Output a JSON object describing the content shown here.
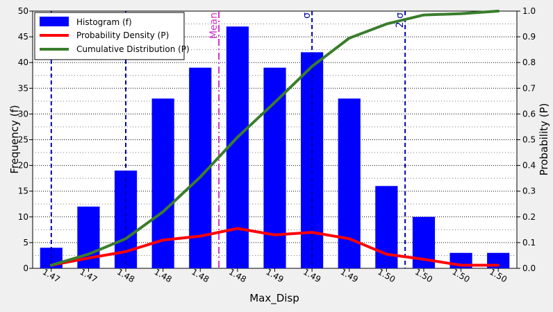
{
  "chart_data": {
    "type": "bar",
    "xlabel": "Max_Disp",
    "ylabel_left": "Frequency (f)",
    "ylabel_right": "Probability (P)",
    "categories": [
      "1.47",
      "1.47",
      "1.48",
      "1.48",
      "1.48",
      "1.48",
      "1.49",
      "1.49",
      "1.49",
      "1.50",
      "1.50",
      "1.50",
      "1.50"
    ],
    "ylim_left": [
      0,
      50
    ],
    "ylim_right": [
      0,
      1.0
    ],
    "yticks_left": [
      "0",
      "5",
      "10",
      "15",
      "20",
      "25",
      "30",
      "35",
      "40",
      "45",
      "50"
    ],
    "yticks_right": [
      "0.0",
      "0.1",
      "0.2",
      "0.3",
      "0.4",
      "0.5",
      "0.6",
      "0.7",
      "0.8",
      "0.9",
      "1.0"
    ],
    "grid": true,
    "legend_position": "top-left",
    "series": [
      {
        "name": "Histogram (f)",
        "type": "bar",
        "axis": "left",
        "color": "#0000ff",
        "values": [
          4,
          12,
          19,
          33,
          39,
          47,
          39,
          42,
          33,
          16,
          10,
          3,
          3
        ]
      },
      {
        "name": "Probability Density (P)",
        "type": "line",
        "axis": "right",
        "color": "#ff0000",
        "values": [
          0.012,
          0.04,
          0.065,
          0.11,
          0.125,
          0.155,
          0.13,
          0.14,
          0.115,
          0.055,
          0.035,
          0.012,
          0.012
        ]
      },
      {
        "name": "Cumulative Distribution (P)",
        "type": "line",
        "axis": "right",
        "color": "#3a7d2c",
        "values": [
          0.012,
          0.055,
          0.115,
          0.22,
          0.355,
          0.51,
          0.645,
          0.785,
          0.895,
          0.95,
          0.985,
          0.99,
          1.0
        ]
      }
    ],
    "reference_lines": [
      {
        "label": "",
        "position": 0.5,
        "color": "#0000aa",
        "style": "dashed"
      },
      {
        "label": "",
        "position": 2.5,
        "color": "#0000aa",
        "style": "dashed"
      },
      {
        "label": "Mean",
        "position": 5.0,
        "color": "#cc33cc",
        "style": "dashdot"
      },
      {
        "label": "σ",
        "position": 7.5,
        "color": "#0000aa",
        "style": "dashed"
      },
      {
        "label": "2 σ",
        "position": 10.0,
        "color": "#0000aa",
        "style": "dashed"
      }
    ]
  }
}
